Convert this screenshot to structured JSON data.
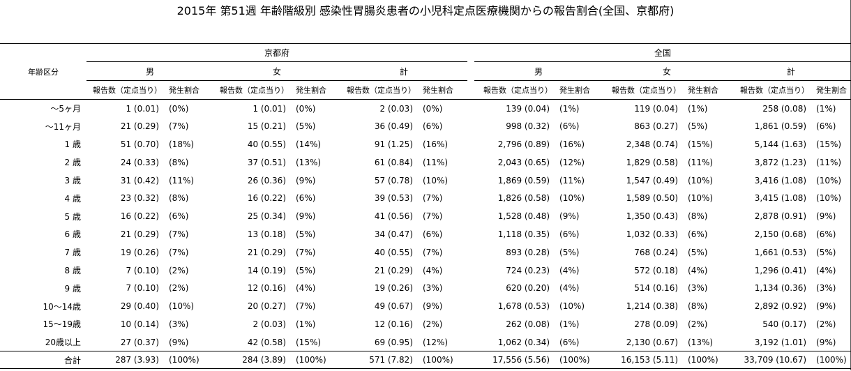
{
  "title": "2015年 第51週 年齢階級別 感染性胃腸炎患者の小児科定点医療機関からの報告割合(全国、京都府)",
  "header": {
    "age_label": "年齢区分",
    "region_kyoto": "京都府",
    "region_national": "全国",
    "sex_male": "男",
    "sex_female": "女",
    "sex_total": "計",
    "sub_count": "報告数（定点当り）",
    "sub_rate": "発生割合"
  },
  "rows": [
    {
      "age": "～5ヶ月",
      "k_m": "1 (0.01)",
      "k_m_p": "(0%)",
      "k_f": "1 (0.01)",
      "k_f_p": "(0%)",
      "k_t": "2 (0.03)",
      "k_t_p": "(0%)",
      "n_m": "139 (0.04)",
      "n_m_p": "(1%)",
      "n_f": "119 (0.04)",
      "n_f_p": "(1%)",
      "n_t": "258 (0.08)",
      "n_t_p": "(1%)"
    },
    {
      "age": "～11ヶ月",
      "k_m": "21 (0.29)",
      "k_m_p": "(7%)",
      "k_f": "15 (0.21)",
      "k_f_p": "(5%)",
      "k_t": "36 (0.49)",
      "k_t_p": "(6%)",
      "n_m": "998 (0.32)",
      "n_m_p": "(6%)",
      "n_f": "863 (0.27)",
      "n_f_p": "(5%)",
      "n_t": "1,861 (0.59)",
      "n_t_p": "(6%)"
    },
    {
      "age": "1 歳",
      "k_m": "51 (0.70)",
      "k_m_p": "(18%)",
      "k_f": "40 (0.55)",
      "k_f_p": "(14%)",
      "k_t": "91 (1.25)",
      "k_t_p": "(16%)",
      "n_m": "2,796 (0.89)",
      "n_m_p": "(16%)",
      "n_f": "2,348 (0.74)",
      "n_f_p": "(15%)",
      "n_t": "5,144 (1.63)",
      "n_t_p": "(15%)"
    },
    {
      "age": "2 歳",
      "k_m": "24 (0.33)",
      "k_m_p": "(8%)",
      "k_f": "37 (0.51)",
      "k_f_p": "(13%)",
      "k_t": "61 (0.84)",
      "k_t_p": "(11%)",
      "n_m": "2,043 (0.65)",
      "n_m_p": "(12%)",
      "n_f": "1,829 (0.58)",
      "n_f_p": "(11%)",
      "n_t": "3,872 (1.23)",
      "n_t_p": "(11%)"
    },
    {
      "age": "3 歳",
      "k_m": "31 (0.42)",
      "k_m_p": "(11%)",
      "k_f": "26 (0.36)",
      "k_f_p": "(9%)",
      "k_t": "57 (0.78)",
      "k_t_p": "(10%)",
      "n_m": "1,869 (0.59)",
      "n_m_p": "(11%)",
      "n_f": "1,547 (0.49)",
      "n_f_p": "(10%)",
      "n_t": "3,416 (1.08)",
      "n_t_p": "(10%)"
    },
    {
      "age": "4 歳",
      "k_m": "23 (0.32)",
      "k_m_p": "(8%)",
      "k_f": "16 (0.22)",
      "k_f_p": "(6%)",
      "k_t": "39 (0.53)",
      "k_t_p": "(7%)",
      "n_m": "1,826 (0.58)",
      "n_m_p": "(10%)",
      "n_f": "1,589 (0.50)",
      "n_f_p": "(10%)",
      "n_t": "3,415 (1.08)",
      "n_t_p": "(10%)"
    },
    {
      "age": "5 歳",
      "k_m": "16 (0.22)",
      "k_m_p": "(6%)",
      "k_f": "25 (0.34)",
      "k_f_p": "(9%)",
      "k_t": "41 (0.56)",
      "k_t_p": "(7%)",
      "n_m": "1,528 (0.48)",
      "n_m_p": "(9%)",
      "n_f": "1,350 (0.43)",
      "n_f_p": "(8%)",
      "n_t": "2,878 (0.91)",
      "n_t_p": "(9%)"
    },
    {
      "age": "6 歳",
      "k_m": "21 (0.29)",
      "k_m_p": "(7%)",
      "k_f": "13 (0.18)",
      "k_f_p": "(5%)",
      "k_t": "34 (0.47)",
      "k_t_p": "(6%)",
      "n_m": "1,118 (0.35)",
      "n_m_p": "(6%)",
      "n_f": "1,032 (0.33)",
      "n_f_p": "(6%)",
      "n_t": "2,150 (0.68)",
      "n_t_p": "(6%)"
    },
    {
      "age": "7 歳",
      "k_m": "19 (0.26)",
      "k_m_p": "(7%)",
      "k_f": "21 (0.29)",
      "k_f_p": "(7%)",
      "k_t": "40 (0.55)",
      "k_t_p": "(7%)",
      "n_m": "893 (0.28)",
      "n_m_p": "(5%)",
      "n_f": "768 (0.24)",
      "n_f_p": "(5%)",
      "n_t": "1,661 (0.53)",
      "n_t_p": "(5%)"
    },
    {
      "age": "8 歳",
      "k_m": "7 (0.10)",
      "k_m_p": "(2%)",
      "k_f": "14 (0.19)",
      "k_f_p": "(5%)",
      "k_t": "21 (0.29)",
      "k_t_p": "(4%)",
      "n_m": "724 (0.23)",
      "n_m_p": "(4%)",
      "n_f": "572 (0.18)",
      "n_f_p": "(4%)",
      "n_t": "1,296 (0.41)",
      "n_t_p": "(4%)"
    },
    {
      "age": "9 歳",
      "k_m": "7 (0.10)",
      "k_m_p": "(2%)",
      "k_f": "12 (0.16)",
      "k_f_p": "(4%)",
      "k_t": "19 (0.26)",
      "k_t_p": "(3%)",
      "n_m": "620 (0.20)",
      "n_m_p": "(4%)",
      "n_f": "514 (0.16)",
      "n_f_p": "(3%)",
      "n_t": "1,134 (0.36)",
      "n_t_p": "(3%)"
    },
    {
      "age": "10～14歳",
      "k_m": "29 (0.40)",
      "k_m_p": "(10%)",
      "k_f": "20 (0.27)",
      "k_f_p": "(7%)",
      "k_t": "49 (0.67)",
      "k_t_p": "(9%)",
      "n_m": "1,678 (0.53)",
      "n_m_p": "(10%)",
      "n_f": "1,214 (0.38)",
      "n_f_p": "(8%)",
      "n_t": "2,892 (0.92)",
      "n_t_p": "(9%)"
    },
    {
      "age": "15～19歳",
      "k_m": "10 (0.14)",
      "k_m_p": "(3%)",
      "k_f": "2 (0.03)",
      "k_f_p": "(1%)",
      "k_t": "12 (0.16)",
      "k_t_p": "(2%)",
      "n_m": "262 (0.08)",
      "n_m_p": "(1%)",
      "n_f": "278 (0.09)",
      "n_f_p": "(2%)",
      "n_t": "540 (0.17)",
      "n_t_p": "(2%)"
    },
    {
      "age": "20歳以上",
      "k_m": "27 (0.37)",
      "k_m_p": "(9%)",
      "k_f": "42 (0.58)",
      "k_f_p": "(15%)",
      "k_t": "69 (0.95)",
      "k_t_p": "(12%)",
      "n_m": "1,062 (0.34)",
      "n_m_p": "(6%)",
      "n_f": "2,130 (0.67)",
      "n_f_p": "(13%)",
      "n_t": "3,192 (1.01)",
      "n_t_p": "(9%)"
    }
  ],
  "total": {
    "age": "合計",
    "k_m": "287 (3.93)",
    "k_m_p": "(100%)",
    "k_f": "284 (3.89)",
    "k_f_p": "(100%)",
    "k_t": "571 (7.82)",
    "k_t_p": "(100%)",
    "n_m": "17,556 (5.56)",
    "n_m_p": "(100%)",
    "n_f": "16,153 (5.11)",
    "n_f_p": "(100%)",
    "n_t": "33,709 (10.67)",
    "n_t_p": "(100%)"
  }
}
